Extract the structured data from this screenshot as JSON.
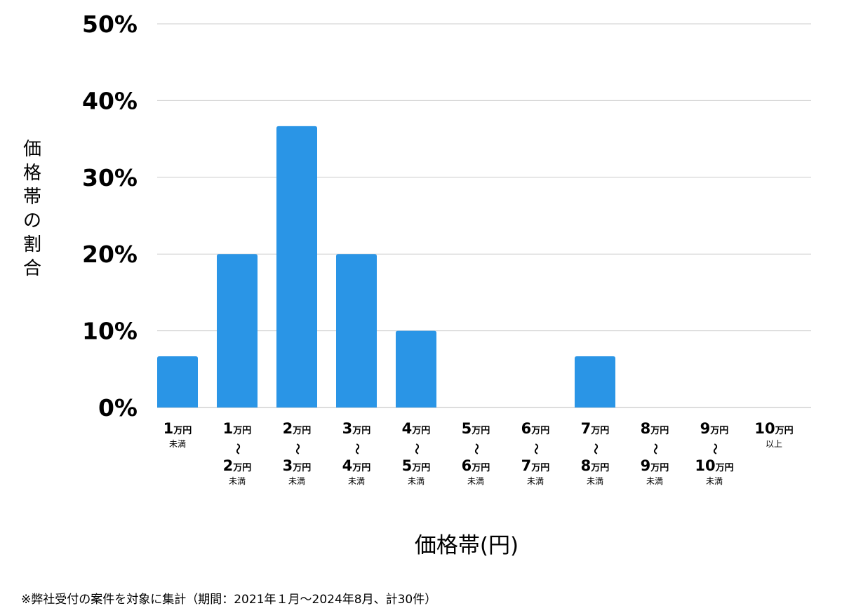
{
  "chart_data": {
    "type": "bar",
    "categories": [
      "1万円未満",
      "1万円〜2万円未満",
      "2万円〜3万円未満",
      "3万円〜4万円未満",
      "4万円〜5万円未満",
      "5万円〜6万円未満",
      "6万円〜7万円未満",
      "7万円〜8万円未満",
      "8万円〜9万円未満",
      "9万円〜10万円未満",
      "10万円以上"
    ],
    "category_labels": [
      {
        "from": "1",
        "to": null,
        "suffix": "未満"
      },
      {
        "from": "1",
        "to": "2",
        "suffix": "未満"
      },
      {
        "from": "2",
        "to": "3",
        "suffix": "未満"
      },
      {
        "from": "3",
        "to": "4",
        "suffix": "未満"
      },
      {
        "from": "4",
        "to": "5",
        "suffix": "未満"
      },
      {
        "from": "5",
        "to": "6",
        "suffix": "未満"
      },
      {
        "from": "6",
        "to": "7",
        "suffix": "未満"
      },
      {
        "from": "7",
        "to": "8",
        "suffix": "未満"
      },
      {
        "from": "8",
        "to": "9",
        "suffix": "未満"
      },
      {
        "from": "9",
        "to": "10",
        "suffix": "未満"
      },
      {
        "from": "10",
        "to": null,
        "suffix": "以上"
      }
    ],
    "unit_label": "万円",
    "range_symbol": "〜",
    "values": [
      6.67,
      20,
      36.67,
      20,
      10,
      0,
      0,
      6.67,
      0,
      0,
      0
    ],
    "ylim": [
      0,
      50
    ],
    "yticks": [
      "0%",
      "10%",
      "20%",
      "30%",
      "40%",
      "50%"
    ],
    "ytick_values": [
      0,
      10,
      20,
      30,
      40,
      50
    ],
    "xlabel": "価格帯(円)",
    "ylabel": "価格帯の割合",
    "grid": true,
    "bar_color": "#2a95e6",
    "grid_color": "#cccccc"
  },
  "footnote": "※弊社受付の案件を対象に集計（期間：2021年１月〜2024年8月、計30件）"
}
